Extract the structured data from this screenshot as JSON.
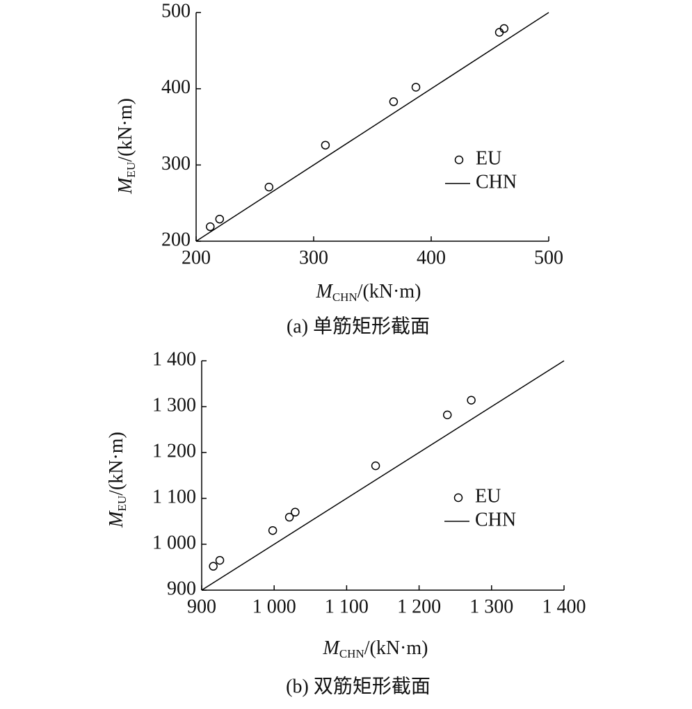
{
  "chart_data": [
    {
      "type": "scatter",
      "x_label": {
        "symbol": "M",
        "subscript": "CHN",
        "unit": "/(kN·m)"
      },
      "y_label": {
        "symbol": "M",
        "subscript": "EU",
        "unit": "/(kN·m)"
      },
      "caption": "(a) 单筋矩形截面",
      "xlim": [
        200,
        500
      ],
      "xticks": [
        200,
        300,
        400,
        500
      ],
      "ylim": [
        200,
        500
      ],
      "yticks": [
        200,
        300,
        400,
        500
      ],
      "series": [
        {
          "name": "EU",
          "type": "scatter",
          "color": "#000000",
          "x": [
            212,
            220,
            262,
            310,
            368,
            387,
            458,
            462
          ],
          "values": [
            219,
            229,
            271,
            326,
            383,
            402,
            474,
            479
          ]
        },
        {
          "name": "CHN",
          "type": "line",
          "color": "#000000",
          "x": [
            200,
            500
          ],
          "values": [
            200,
            500
          ]
        }
      ]
    },
    {
      "type": "scatter",
      "x_label": {
        "symbol": "M",
        "subscript": "CHN",
        "unit": "/(kN·m)"
      },
      "y_label": {
        "symbol": "M",
        "subscript": "EU",
        "unit": "/(kN·m)"
      },
      "caption": "(b) 双筋矩形截面",
      "xlim": [
        900,
        1400
      ],
      "xticks": [
        900,
        {
          "value": 1000,
          "label": "1 000"
        },
        {
          "value": 1100,
          "label": "1 100"
        },
        {
          "value": 1200,
          "label": "1 200"
        },
        {
          "value": 1300,
          "label": "1 300"
        },
        {
          "value": 1400,
          "label": "1 400"
        }
      ],
      "ylim": [
        900,
        1400
      ],
      "yticks": [
        900,
        {
          "value": 1000,
          "label": "1 000"
        },
        {
          "value": 1100,
          "label": "1 100"
        },
        {
          "value": 1200,
          "label": "1 200"
        },
        {
          "value": 1300,
          "label": "1 300"
        },
        {
          "value": 1400,
          "label": "1 400"
        }
      ],
      "series": [
        {
          "name": "EU",
          "type": "scatter",
          "color": "#000000",
          "x": [
            916,
            925,
            998,
            1021,
            1029,
            1140,
            1239,
            1272
          ],
          "values": [
            952,
            965,
            1030,
            1059,
            1070,
            1171,
            1282,
            1314
          ]
        },
        {
          "name": "CHN",
          "type": "line",
          "color": "#000000",
          "x": [
            900,
            1400
          ],
          "values": [
            900,
            1400
          ]
        }
      ]
    }
  ]
}
